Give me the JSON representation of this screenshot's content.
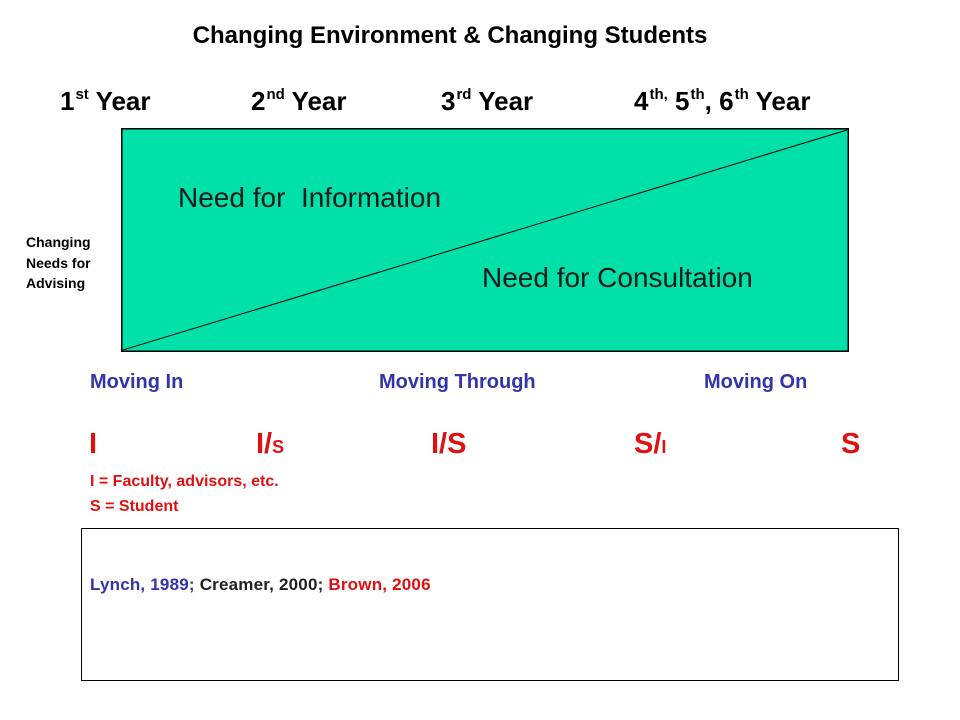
{
  "title": "Changing Environment & Changing Students",
  "years": [
    {
      "num": "1",
      "sup": "st",
      "rest": " Year"
    },
    {
      "num": "2",
      "sup": "nd",
      "rest": " Year"
    },
    {
      "num": "3",
      "sup": "rd",
      "rest": " Year"
    },
    {
      "num": "4",
      "sup": "th,",
      "mid1": " 5",
      "sup2": "th",
      "mid2": ", 6",
      "sup3": "th",
      "rest": " Year"
    }
  ],
  "side_label": [
    "Changing",
    "Needs for",
    "Advising"
  ],
  "regions": {
    "upper": "Need for  Information",
    "lower": "Need for Consultation"
  },
  "colors": {
    "region_fill": "#00e0a8",
    "phase_text": "#3333aa",
    "ratio_text": "#e01010"
  },
  "phases": [
    "Moving In",
    "Moving Through",
    "Moving On"
  ],
  "ratios": [
    {
      "main": "I",
      "small": ""
    },
    {
      "main": "I/",
      "small": "S"
    },
    {
      "main": "I/S",
      "small": ""
    },
    {
      "main": "S/",
      "small": "I"
    },
    {
      "main": "S",
      "small": ""
    }
  ],
  "legend": [
    "I  =  Faculty, advisors, etc.",
    "S = Student"
  ],
  "citation": [
    {
      "text": "Lynch, 1989;",
      "color": "blue"
    },
    {
      "text": " Creamer, 2000;",
      "color": "black"
    },
    {
      "text": " Brown, 2006",
      "color": "red"
    }
  ]
}
